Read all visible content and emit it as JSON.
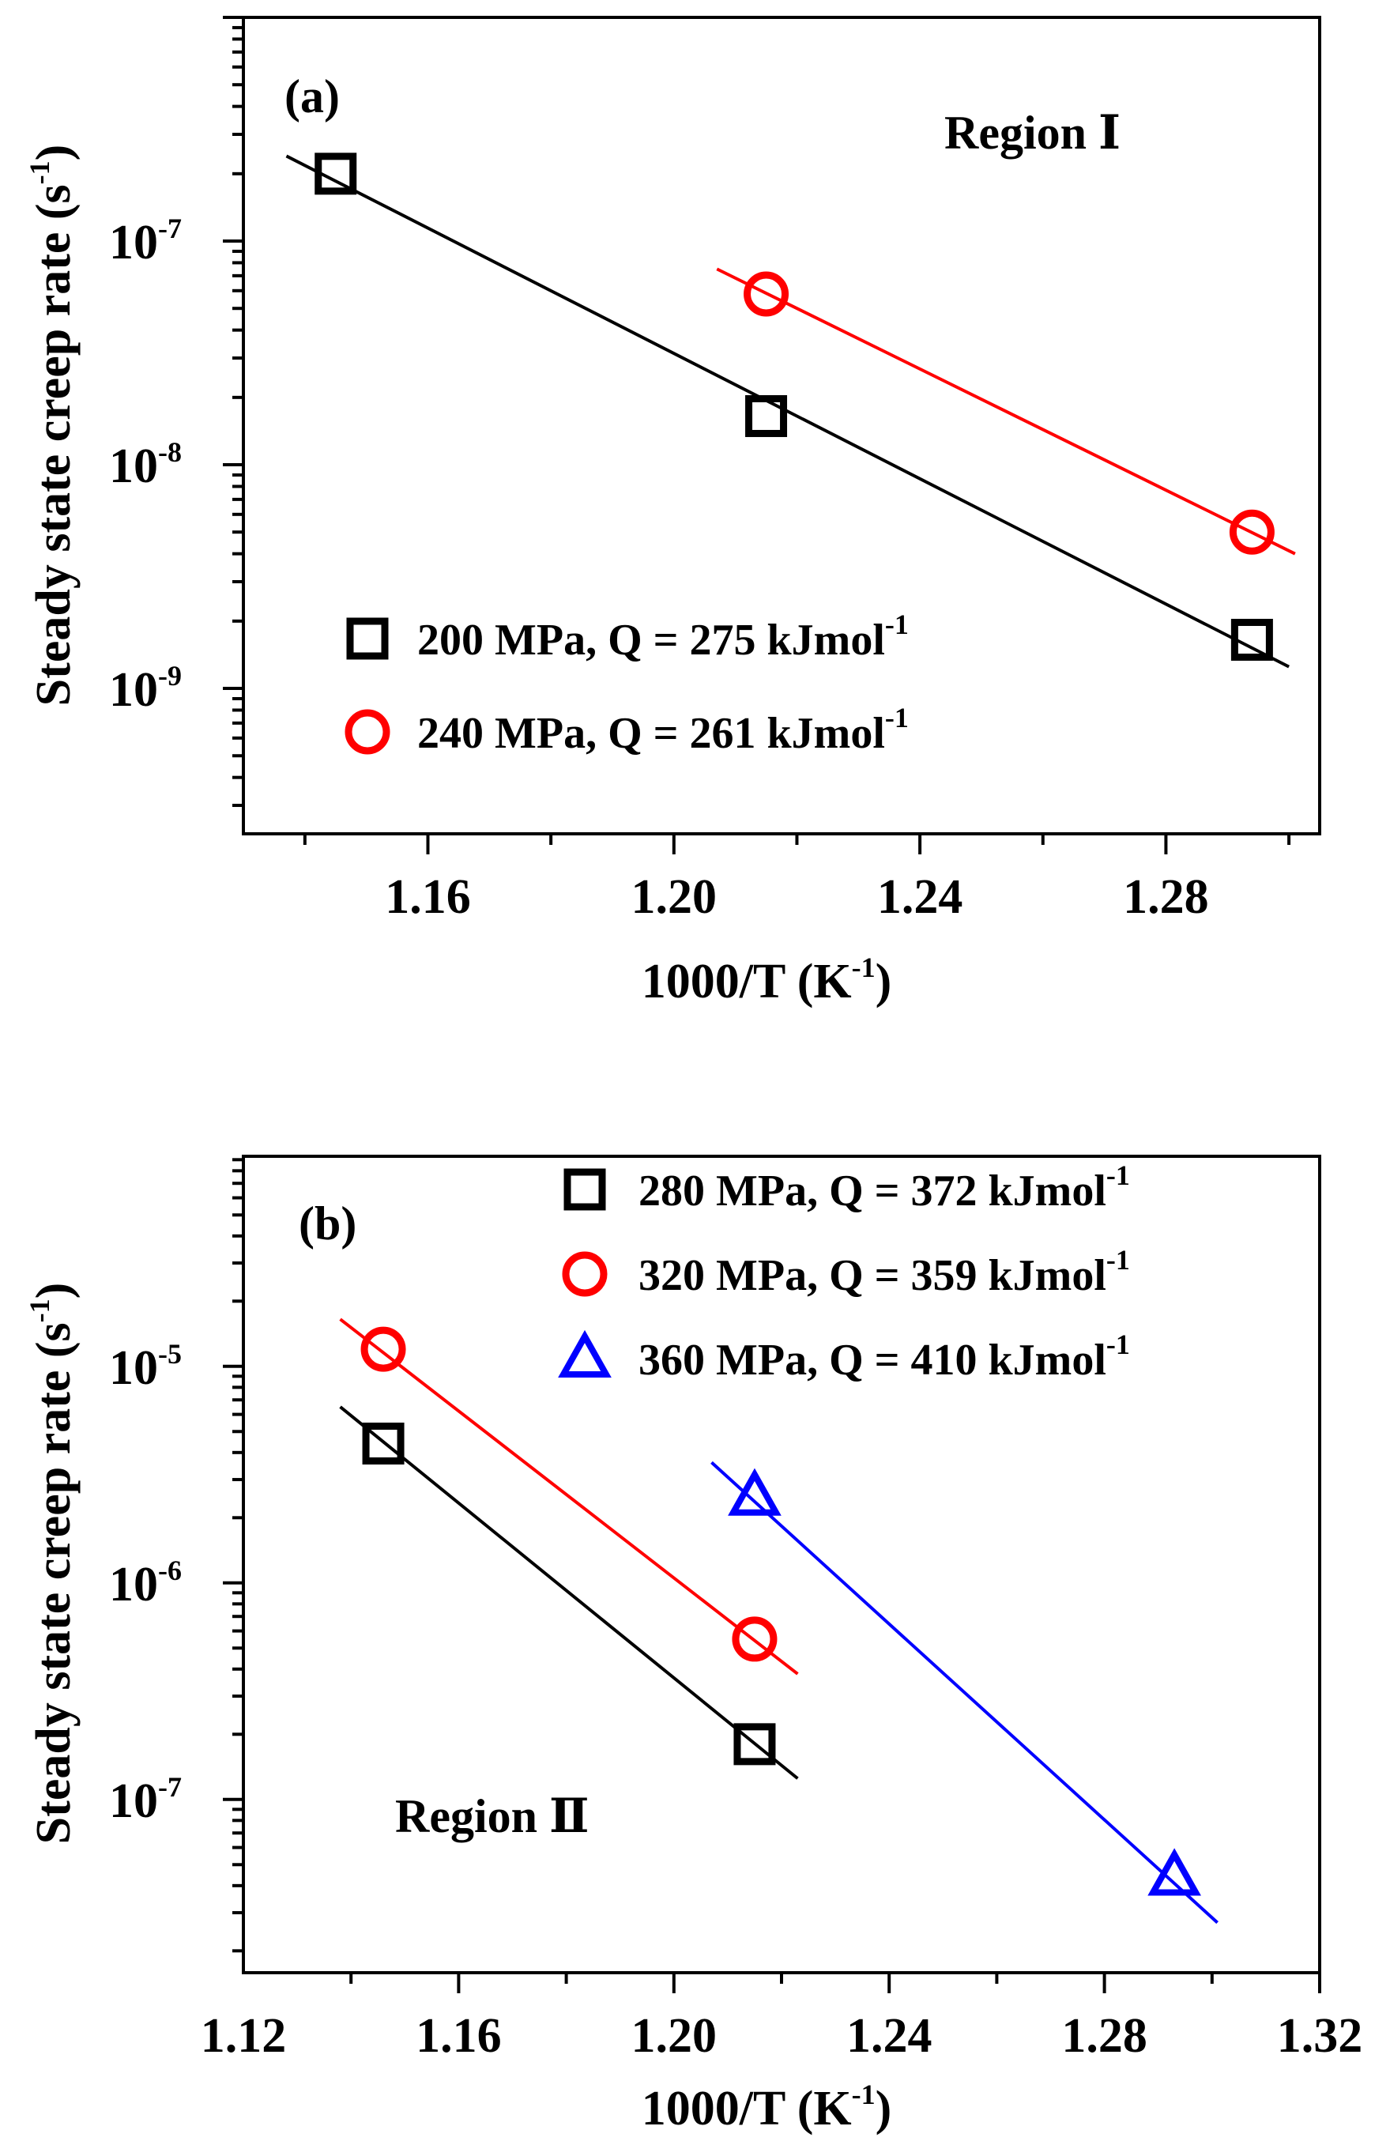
{
  "chart_data": [
    {
      "type": "scatter",
      "panel_label": "(a)",
      "annotation": "Region Ⅰ",
      "xlabel": "1000/T (K-1)",
      "xlabel_base": "1000/T (K",
      "xlabel_sup": "-1",
      "xlabel_tail": ")",
      "ylabel": "Steady state creep rate (s-1)",
      "ylabel_base": "Steady state creep rate (s",
      "ylabel_sup": "-1",
      "ylabel_tail": ")",
      "xlim": [
        1.13,
        1.305
      ],
      "ylim_log10": [
        -9.65,
        -6.0
      ],
      "yscale": "log",
      "x_ticks": [
        1.16,
        1.2,
        1.24,
        1.28
      ],
      "x_tick_labels": [
        "1.16",
        "1.20",
        "1.24",
        "1.28"
      ],
      "y_ticks_log10": [
        -9,
        -8,
        -7
      ],
      "y_tick_labels": [
        {
          "base": "10",
          "exp": "-9"
        },
        {
          "base": "10",
          "exp": "-8"
        },
        {
          "base": "10",
          "exp": "-7"
        }
      ],
      "legend_position": "bottom-left",
      "series": [
        {
          "name": "200 MPa, Q = 275 kJmol-1",
          "label_base": "200 MPa, Q = 275 kJmol",
          "label_sup": "-1",
          "marker": "square",
          "color": "#000000",
          "x": [
            1.145,
            1.215,
            1.294
          ],
          "y": [
            2e-07,
            1.65e-08,
            1.65e-09
          ],
          "fit_x": [
            1.137,
            1.3
          ],
          "fit_y": [
            2.4e-07,
            1.25e-09
          ]
        },
        {
          "name": "240 MPa, Q = 261 kJmol-1",
          "label_base": "240 MPa, Q = 261 kJmol",
          "label_sup": "-1",
          "marker": "circle",
          "color": "#ff0000",
          "x": [
            1.215,
            1.294
          ],
          "y": [
            5.8e-08,
            5e-09
          ],
          "fit_x": [
            1.207,
            1.301
          ],
          "fit_y": [
            7.5e-08,
            4e-09
          ]
        }
      ]
    },
    {
      "type": "scatter",
      "panel_label": "(b)",
      "annotation": "Region Ⅱ",
      "xlabel": "1000/T (K-1)",
      "xlabel_base": "1000/T (K",
      "xlabel_sup": "-1",
      "xlabel_tail": ")",
      "ylabel": "Steady state creep rate (s-1)",
      "ylabel_base": "Steady state creep rate (s",
      "ylabel_sup": "-1",
      "ylabel_tail": ")",
      "xlim": [
        1.12,
        1.32
      ],
      "ylim_log10": [
        -7.8,
        -4.03
      ],
      "yscale": "log",
      "x_ticks": [
        1.12,
        1.16,
        1.2,
        1.24,
        1.28,
        1.32
      ],
      "x_tick_labels": [
        "1.12",
        "1.16",
        "1.20",
        "1.24",
        "1.28",
        "1.32"
      ],
      "y_ticks_log10": [
        -7,
        -6,
        -5
      ],
      "y_tick_labels": [
        {
          "base": "10",
          "exp": "-7"
        },
        {
          "base": "10",
          "exp": "-6"
        },
        {
          "base": "10",
          "exp": "-5"
        }
      ],
      "legend_position": "top-right",
      "series": [
        {
          "name": "280 MPa, Q = 372 kJmol-1",
          "label_base": "280 MPa, Q = 372 kJmol",
          "label_sup": "-1",
          "marker": "square",
          "color": "#000000",
          "x": [
            1.146,
            1.215
          ],
          "y": [
            4.4e-06,
            1.8e-07
          ],
          "fit_x": [
            1.138,
            1.223
          ],
          "fit_y": [
            6.5e-06,
            1.25e-07
          ]
        },
        {
          "name": "320 MPa, Q = 359 kJmol-1",
          "label_base": "320 MPa, Q = 359 kJmol",
          "label_sup": "-1",
          "marker": "circle",
          "color": "#ff0000",
          "x": [
            1.146,
            1.215
          ],
          "y": [
            1.2e-05,
            5.5e-07
          ],
          "fit_x": [
            1.138,
            1.223
          ],
          "fit_y": [
            1.65e-05,
            3.8e-07
          ]
        },
        {
          "name": "360 MPa, Q = 410 kJmol-1",
          "label_base": "360 MPa, Q = 410 kJmol",
          "label_sup": "-1",
          "marker": "triangle",
          "color": "#0000ff",
          "x": [
            1.215,
            1.293
          ],
          "y": [
            2.5e-06,
            4.4e-08
          ],
          "fit_x": [
            1.207,
            1.301
          ],
          "fit_y": [
            3.6e-06,
            2.7e-08
          ]
        }
      ]
    }
  ]
}
